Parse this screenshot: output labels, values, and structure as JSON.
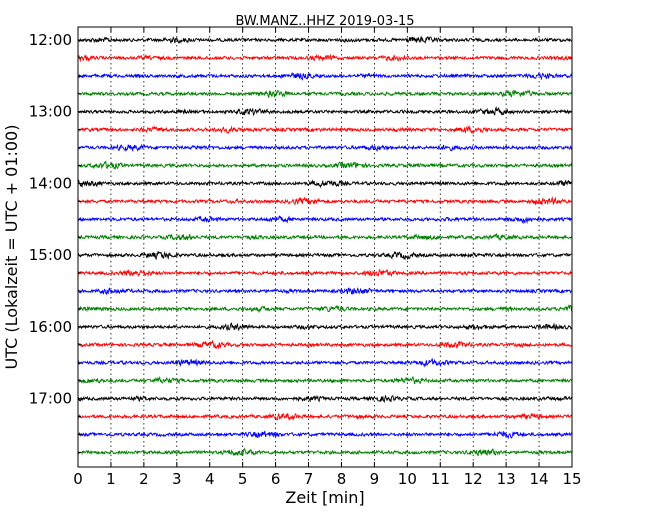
{
  "chart_data": {
    "type": "line",
    "title": "BW.MANZ..HHZ 2019-03-15",
    "xlabel": "Zeit  [min]",
    "ylabel": "UTC (Lokalzeit = UTC + 01:00)",
    "xlim": [
      0,
      15
    ],
    "x_ticks": [
      "0",
      "1",
      "2",
      "3",
      "4",
      "5",
      "6",
      "7",
      "8",
      "9",
      "10",
      "11",
      "12",
      "13",
      "14",
      "15"
    ],
    "y_tick_labels": [
      "12:00",
      "13:00",
      "14:00",
      "15:00",
      "16:00",
      "17:00"
    ],
    "grid": "vertical dotted lines at each minute",
    "trace_interval_minutes": 15,
    "trace_color_cycle": [
      "#000000",
      "#ff0000",
      "#0000ff",
      "#008000"
    ],
    "traces_start": [
      "12:00",
      "12:15",
      "12:30",
      "12:45",
      "13:00",
      "13:15",
      "13:30",
      "13:45",
      "14:00",
      "14:15",
      "14:30",
      "14:45",
      "15:00",
      "15:15",
      "15:30",
      "15:45",
      "16:00",
      "16:15",
      "16:30",
      "16:45",
      "17:00",
      "17:15",
      "17:30",
      "17:45"
    ]
  }
}
